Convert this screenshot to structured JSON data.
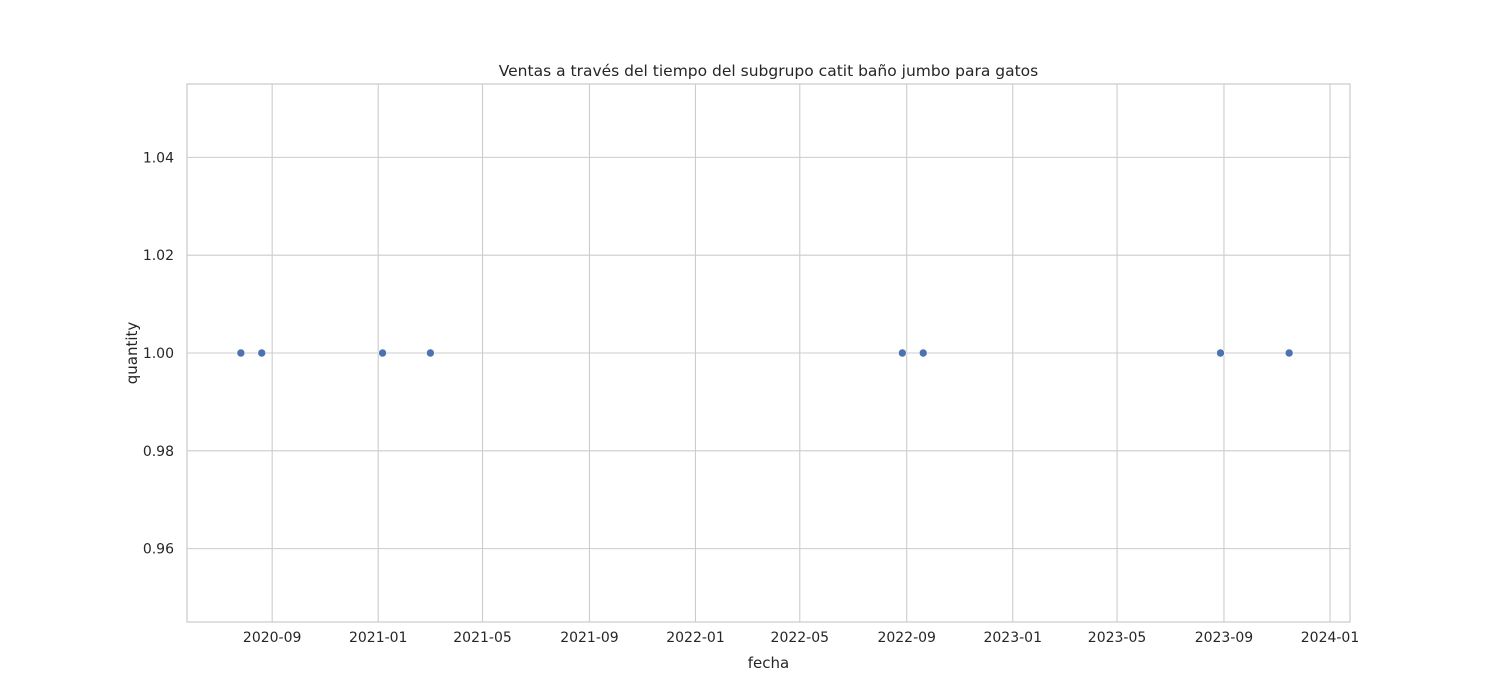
{
  "chart_data": {
    "type": "scatter",
    "title": "Ventas a través del tiempo del subgrupo catit baño jumbo para gatos",
    "xlabel": "fecha",
    "ylabel": "quantity",
    "x_ticks": [
      "2020-09",
      "2021-01",
      "2021-05",
      "2021-09",
      "2022-01",
      "2022-05",
      "2022-09",
      "2023-01",
      "2023-05",
      "2023-09",
      "2024-01"
    ],
    "y_ticks": [
      "0.96",
      "0.98",
      "1.00",
      "1.02",
      "1.04"
    ],
    "xlim": [
      "2020-05-26",
      "2024-01-24"
    ],
    "ylim": [
      0.945,
      1.055
    ],
    "grid": true,
    "marker_color": "#4c72b0",
    "points": [
      {
        "x": "2020-07-27",
        "y": 1.0
      },
      {
        "x": "2020-08-20",
        "y": 1.0
      },
      {
        "x": "2021-01-06",
        "y": 1.0
      },
      {
        "x": "2021-03-02",
        "y": 1.0
      },
      {
        "x": "2022-08-27",
        "y": 1.0
      },
      {
        "x": "2022-09-20",
        "y": 1.0
      },
      {
        "x": "2023-08-28",
        "y": 1.0
      },
      {
        "x": "2023-11-15",
        "y": 1.0
      }
    ]
  }
}
